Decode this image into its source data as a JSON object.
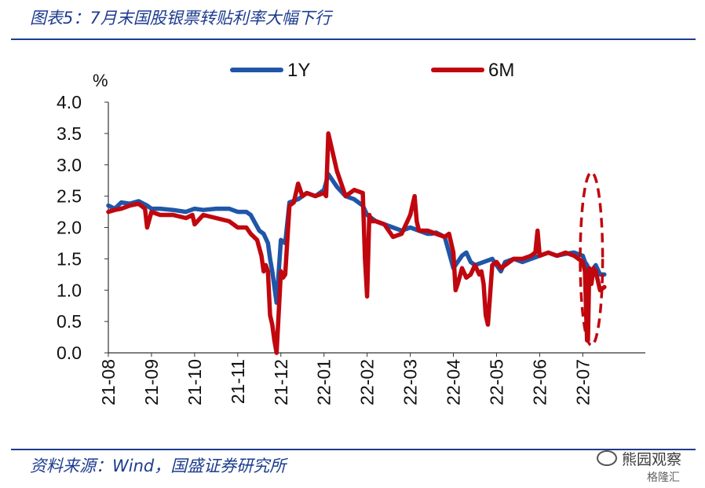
{
  "header": {
    "title": "图表5：7月末国股银票转贴利率大幅下行"
  },
  "footer": {
    "source": "资料来源：Wind，国盛证券研究所"
  },
  "watermark": {
    "line1": "熊园观察",
    "line2": "格隆汇"
  },
  "icons": {
    "watermark": "wechat-bubble-icon"
  },
  "colors": {
    "title": "#1d3c8f",
    "series_1y": "#1f56a8",
    "series_6m": "#c0070e",
    "highlight": "#c0070e"
  },
  "chart_data": {
    "type": "line",
    "ylabel": "%",
    "ylim": [
      0.0,
      4.0
    ],
    "yticks": [
      "0.0",
      "0.5",
      "1.0",
      "1.5",
      "2.0",
      "2.5",
      "3.0",
      "3.5",
      "4.0"
    ],
    "xlim": [
      0,
      12.45
    ],
    "xticks": [
      "21-08",
      "21-09",
      "21-10",
      "21-11",
      "21-12",
      "22-01",
      "22-02",
      "22-03",
      "22-04",
      "22-05",
      "22-06",
      "22-07"
    ],
    "legend_position": "top",
    "grid": false,
    "highlight": {
      "shape": "ellipse",
      "x_center": 11.2,
      "y_center": 1.5,
      "x_radius": 0.26,
      "y_radius": 1.38
    },
    "series": [
      {
        "name": "1Y",
        "x": [
          0,
          0.15,
          0.3,
          0.5,
          0.7,
          0.9,
          1.0,
          1.2,
          1.5,
          1.8,
          2.0,
          2.2,
          2.5,
          2.8,
          3.0,
          3.2,
          3.3,
          3.5,
          3.6,
          3.7,
          3.75,
          3.8,
          3.9,
          4.0,
          4.1,
          4.2,
          4.4,
          4.6,
          4.8,
          5.0,
          5.1,
          5.2,
          5.3,
          5.5,
          5.7,
          5.9,
          6.0,
          6.2,
          6.4,
          6.6,
          6.8,
          7.0,
          7.2,
          7.4,
          7.5,
          7.6,
          7.8,
          8.0,
          8.2,
          8.3,
          8.4,
          8.5,
          8.7,
          8.9,
          9.0,
          9.1,
          9.2,
          9.4,
          9.6,
          9.8,
          10.0,
          10.2,
          10.4,
          10.6,
          10.8,
          11.0,
          11.05,
          11.1,
          11.15,
          11.2,
          11.3,
          11.4,
          11.5
        ],
        "values": [
          2.35,
          2.3,
          2.4,
          2.38,
          2.42,
          2.35,
          2.3,
          2.3,
          2.28,
          2.25,
          2.3,
          2.28,
          2.3,
          2.3,
          2.25,
          2.25,
          2.2,
          1.95,
          1.9,
          1.75,
          1.5,
          1.3,
          0.8,
          1.8,
          1.75,
          2.4,
          2.45,
          2.55,
          2.5,
          2.6,
          2.85,
          2.75,
          2.65,
          2.5,
          2.45,
          2.35,
          2.2,
          2.1,
          2.05,
          2.0,
          1.95,
          2.0,
          1.95,
          1.9,
          1.9,
          1.92,
          1.85,
          1.35,
          1.55,
          1.6,
          1.45,
          1.4,
          1.45,
          1.5,
          1.4,
          1.3,
          1.45,
          1.5,
          1.45,
          1.5,
          1.55,
          1.6,
          1.55,
          1.58,
          1.6,
          1.55,
          1.45,
          1.4,
          1.3,
          1.3,
          1.4,
          1.25,
          1.25
        ]
      },
      {
        "name": "6M",
        "x": [
          0,
          0.15,
          0.3,
          0.5,
          0.7,
          0.85,
          0.9,
          1.0,
          1.2,
          1.5,
          1.8,
          1.95,
          2.0,
          2.2,
          2.5,
          2.8,
          3.0,
          3.2,
          3.3,
          3.45,
          3.55,
          3.6,
          3.65,
          3.7,
          3.75,
          3.8,
          3.85,
          3.9,
          4.0,
          4.05,
          4.1,
          4.2,
          4.3,
          4.4,
          4.5,
          4.6,
          4.8,
          5.0,
          5.05,
          5.1,
          5.2,
          5.3,
          5.5,
          5.7,
          5.9,
          5.95,
          6.0,
          6.05,
          6.1,
          6.2,
          6.4,
          6.6,
          6.8,
          7.0,
          7.1,
          7.15,
          7.2,
          7.4,
          7.6,
          7.8,
          7.9,
          8.0,
          8.05,
          8.1,
          8.2,
          8.3,
          8.4,
          8.5,
          8.6,
          8.65,
          8.7,
          8.75,
          8.8,
          8.9,
          9.0,
          9.1,
          9.2,
          9.4,
          9.6,
          9.8,
          9.9,
          9.95,
          10.0,
          10.2,
          10.4,
          10.6,
          10.8,
          11.0,
          11.05,
          11.08,
          11.1,
          11.12,
          11.15,
          11.2,
          11.25,
          11.3,
          11.4,
          11.5
        ],
        "values": [
          2.25,
          2.28,
          2.3,
          2.35,
          2.38,
          2.3,
          2.0,
          2.25,
          2.2,
          2.2,
          2.15,
          2.2,
          2.05,
          2.2,
          2.15,
          2.1,
          2.0,
          2.0,
          1.9,
          1.8,
          1.55,
          1.3,
          1.4,
          1.3,
          0.6,
          0.45,
          0.2,
          0.0,
          1.3,
          1.2,
          1.25,
          2.35,
          2.4,
          2.7,
          2.5,
          2.55,
          2.5,
          2.55,
          2.5,
          3.5,
          3.2,
          2.9,
          2.5,
          2.6,
          2.55,
          1.5,
          0.9,
          2.2,
          2.1,
          2.1,
          2.05,
          1.85,
          1.9,
          2.2,
          2.5,
          2.1,
          1.95,
          1.95,
          1.9,
          1.85,
          1.9,
          1.6,
          1.0,
          1.1,
          1.35,
          1.2,
          1.25,
          1.4,
          1.25,
          1.3,
          1.1,
          0.6,
          0.45,
          1.4,
          1.45,
          1.35,
          1.4,
          1.5,
          1.5,
          1.55,
          1.6,
          1.95,
          1.55,
          1.6,
          1.55,
          1.6,
          1.55,
          1.45,
          1.3,
          0.6,
          0.2,
          0.2,
          1.35,
          1.1,
          1.35,
          1.3,
          1.0,
          1.05
        ]
      }
    ]
  }
}
